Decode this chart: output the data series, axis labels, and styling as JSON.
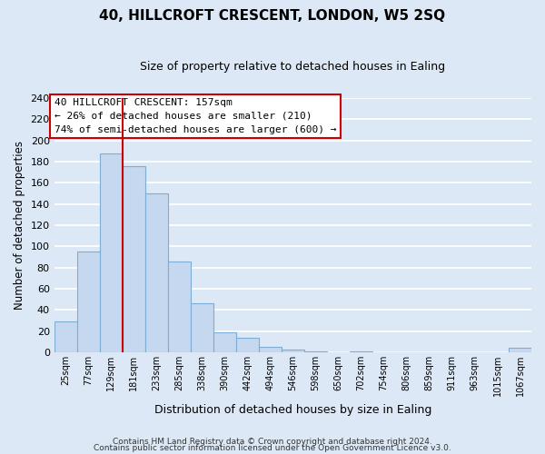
{
  "title": "40, HILLCROFT CRESCENT, LONDON, W5 2SQ",
  "subtitle": "Size of property relative to detached houses in Ealing",
  "bar_labels": [
    "25sqm",
    "77sqm",
    "129sqm",
    "181sqm",
    "233sqm",
    "285sqm",
    "338sqm",
    "390sqm",
    "442sqm",
    "494sqm",
    "546sqm",
    "598sqm",
    "650sqm",
    "702sqm",
    "754sqm",
    "806sqm",
    "859sqm",
    "911sqm",
    "963sqm",
    "1015sqm",
    "1067sqm"
  ],
  "bar_values": [
    29,
    95,
    188,
    176,
    150,
    86,
    46,
    19,
    14,
    5,
    3,
    1,
    0,
    1,
    0,
    0,
    0,
    0,
    0,
    0,
    4
  ],
  "bar_color": "#c5d8ef",
  "bar_edge_color": "#7dadd4",
  "vline_x_index": 3,
  "vline_color": "#cc0000",
  "annotation_title": "40 HILLCROFT CRESCENT: 157sqm",
  "annotation_line1": "← 26% of detached houses are smaller (210)",
  "annotation_line2": "74% of semi-detached houses are larger (600) →",
  "annotation_box_color": "#ffffff",
  "annotation_box_edge": "#cc0000",
  "xlabel": "Distribution of detached houses by size in Ealing",
  "ylabel": "Number of detached properties",
  "ylim": [
    0,
    240
  ],
  "yticks": [
    0,
    20,
    40,
    60,
    80,
    100,
    120,
    140,
    160,
    180,
    200,
    220,
    240
  ],
  "footer1": "Contains HM Land Registry data © Crown copyright and database right 2024.",
  "footer2": "Contains public sector information licensed under the Open Government Licence v3.0.",
  "bg_color": "#dce8f5",
  "plot_bg_color": "#dce8f5",
  "grid_color": "#ffffff"
}
